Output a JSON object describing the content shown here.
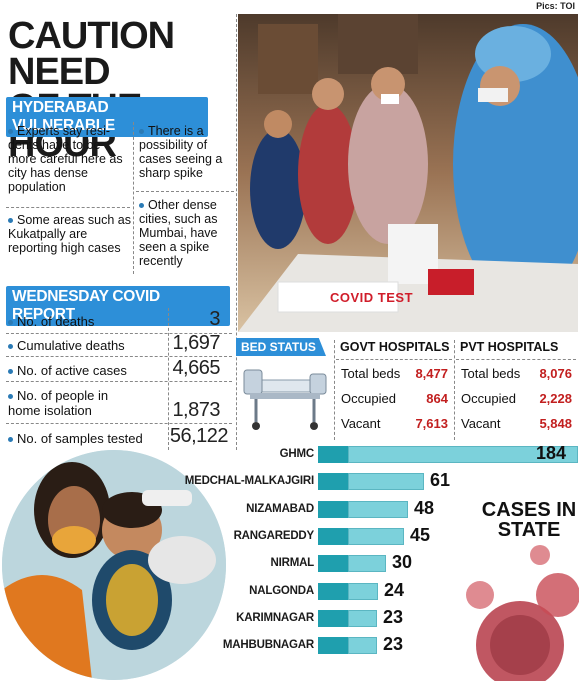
{
  "credit": "Pics: TOI",
  "headline": [
    "CAUTION NEED",
    "OF THE HOUR"
  ],
  "vulnerable": {
    "banner": "HYDERABAD VULNERABLE",
    "points": [
      "Experts say resi- dents have to be more careful here as city has dense population",
      "There is a possibility of cases seeing a sharp spike",
      "Some areas such as Kukatpally are reporting high cases",
      "Other dense cities, such as Mumbai, have seen a spike recently"
    ]
  },
  "report": {
    "banner": "WEDNESDAY COVID REPORT",
    "rows": [
      {
        "label": "No. of deaths",
        "value": "3"
      },
      {
        "label": "Cumulative deaths",
        "value": "1,697"
      },
      {
        "label": "No. of active cases",
        "value": "4,665"
      },
      {
        "label": "No. of people in home isolation",
        "value": "1,873"
      },
      {
        "label": "No. of samples tested",
        "value": "56,122"
      }
    ]
  },
  "photo": {
    "sign": "COVID TEST"
  },
  "bed_status": {
    "tag": "BED STATUS",
    "govt": {
      "title": "GOVT HOSPITALS",
      "rows": [
        {
          "label": "Total beds",
          "value": "8,477"
        },
        {
          "label": "Occupied",
          "value": "864"
        },
        {
          "label": "Vacant",
          "value": "7,613"
        }
      ]
    },
    "pvt": {
      "title": "PVT HOSPITALS",
      "rows": [
        {
          "label": "Total beds",
          "value": "8,076"
        },
        {
          "label": "Occupied",
          "value": "2,228"
        },
        {
          "label": "Vacant",
          "value": "5,848"
        }
      ]
    }
  },
  "chart_title": [
    "CASES IN",
    "STATE"
  ],
  "colors": {
    "accent": "#2d8fd8",
    "bar": "#7cd1db",
    "bar_dark": "#1f9fae",
    "red_value": "#c21f1f"
  },
  "chart_data": {
    "type": "bar",
    "orientation": "horizontal",
    "title": "CASES IN STATE",
    "categories": [
      "GHMC",
      "MEDCHAL-MALKAJGIRI",
      "NIZAMABAD",
      "RANGAREDDY",
      "NIRMAL",
      "NALGONDA",
      "KARIMNAGAR",
      "MAHBUBNAGAR"
    ],
    "values": [
      184,
      61,
      48,
      45,
      30,
      24,
      23,
      23
    ],
    "xlim": [
      0,
      184
    ]
  }
}
